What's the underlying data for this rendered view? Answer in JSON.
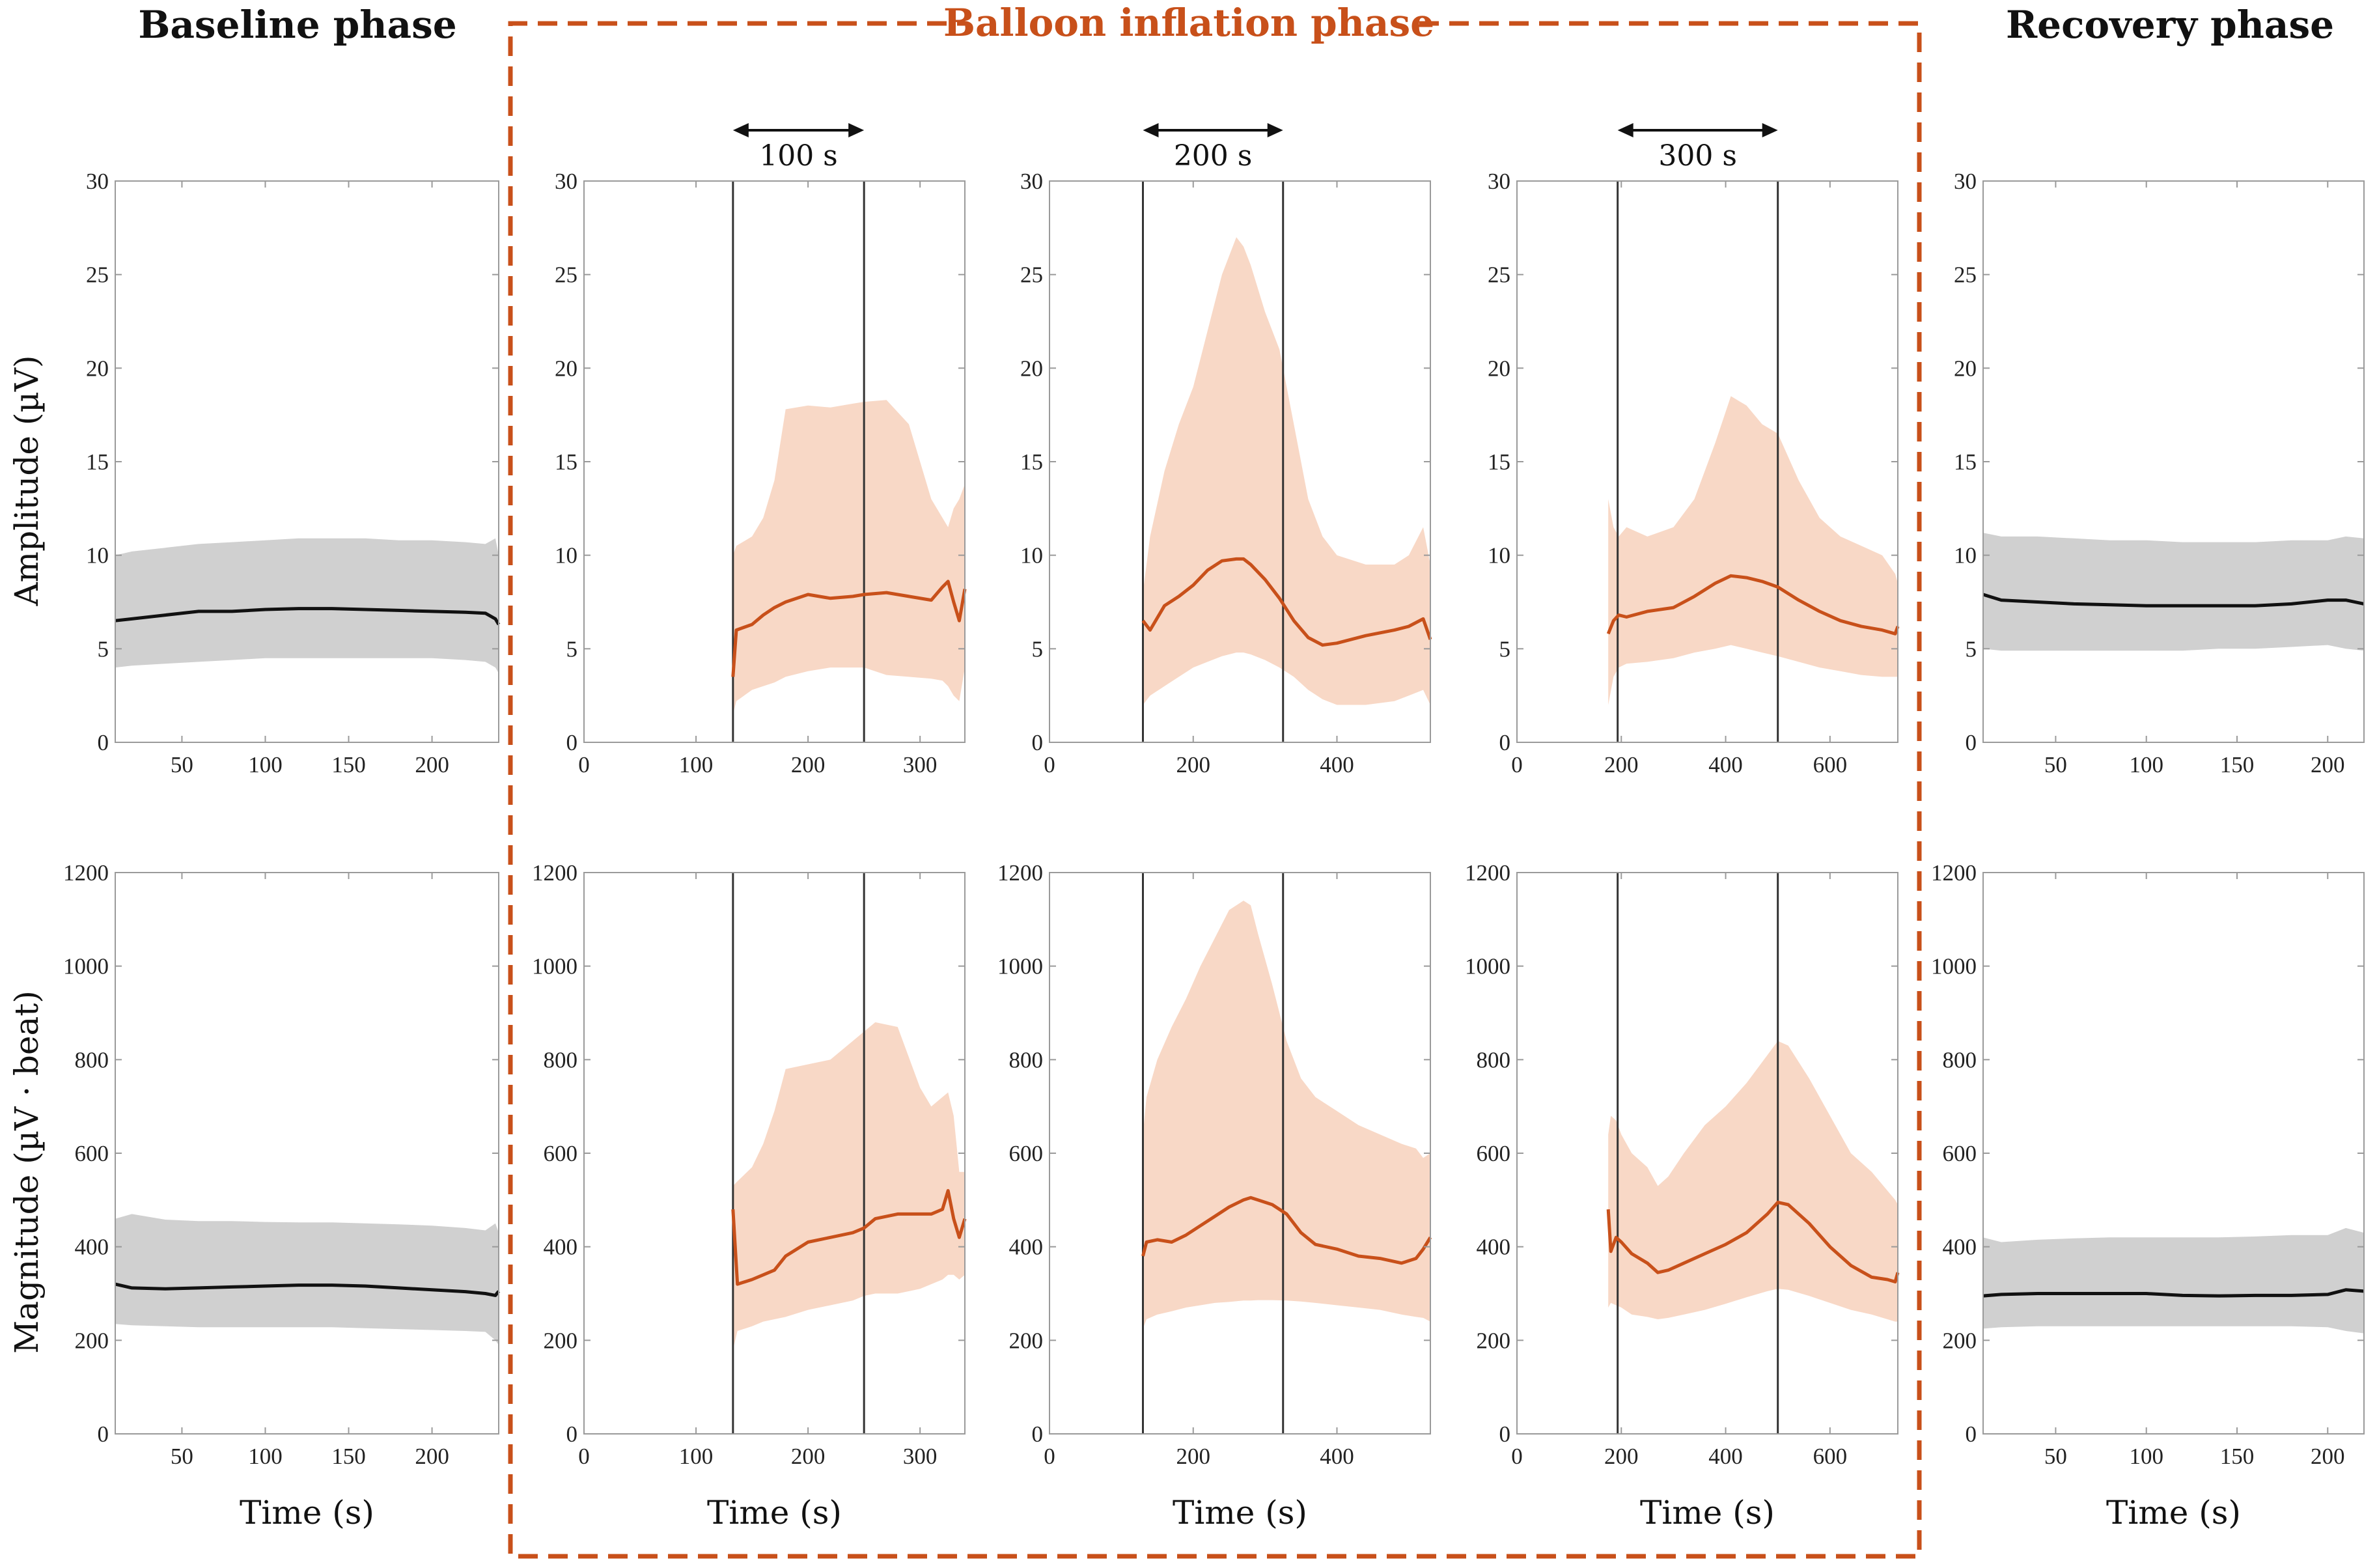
{
  "titles": {
    "baseline": "Baseline phase",
    "inflation": "Balloon inflation phase",
    "recovery": "Recovery phase"
  },
  "colors": {
    "inflation": "#c8501a",
    "inflation_band": "#f8d8c6",
    "baseline_band": "#d0d0d0",
    "line": "#111111",
    "axis": "#9a9a9a",
    "marker": "#333333"
  },
  "chart_data": [
    {
      "type": "area",
      "phase": "baseline",
      "row": "amplitude",
      "xlim": [
        10,
        240
      ],
      "ylim": [
        0,
        30
      ],
      "xticks": [
        "50",
        "100",
        "150",
        "200"
      ],
      "xtick_values": [
        50,
        100,
        150,
        200
      ],
      "yticks": [
        "0",
        "5",
        "10",
        "15",
        "20",
        "25",
        "30"
      ],
      "ytick_values": [
        0,
        5,
        10,
        15,
        20,
        25,
        30
      ],
      "ylabel": "Amplitude (µV)",
      "xlabel": "",
      "x": [
        10,
        20,
        40,
        60,
        80,
        100,
        120,
        140,
        160,
        180,
        200,
        220,
        232,
        238,
        240
      ],
      "mean": [
        6.5,
        6.6,
        6.8,
        7.0,
        7.0,
        7.1,
        7.15,
        7.15,
        7.1,
        7.05,
        7.0,
        6.95,
        6.9,
        6.6,
        6.3
      ],
      "upper": [
        10.0,
        10.2,
        10.4,
        10.6,
        10.7,
        10.8,
        10.9,
        10.9,
        10.9,
        10.8,
        10.8,
        10.7,
        10.6,
        10.9,
        10.0
      ],
      "lower": [
        4.0,
        4.1,
        4.2,
        4.3,
        4.4,
        4.5,
        4.5,
        4.5,
        4.5,
        4.5,
        4.5,
        4.4,
        4.3,
        4.0,
        3.7
      ]
    },
    {
      "type": "area",
      "phase": "inflation-100",
      "row": "amplitude",
      "xlim": [
        0,
        340
      ],
      "ylim": [
        0,
        30
      ],
      "xticks": [
        "0",
        "100",
        "200",
        "300"
      ],
      "xtick_values": [
        0,
        100,
        200,
        300
      ],
      "yticks": [
        "0",
        "5",
        "10",
        "15",
        "20",
        "25",
        "30"
      ],
      "ytick_values": [
        0,
        5,
        10,
        15,
        20,
        25,
        30
      ],
      "markers": [
        133,
        250
      ],
      "duration_label": "100 s",
      "x": [
        133,
        136,
        150,
        160,
        170,
        180,
        200,
        220,
        240,
        250,
        270,
        290,
        310,
        320,
        325,
        330,
        335,
        340
      ],
      "mean": [
        3.5,
        6.0,
        6.3,
        6.8,
        7.2,
        7.5,
        7.9,
        7.7,
        7.8,
        7.9,
        8.0,
        7.8,
        7.6,
        8.3,
        8.6,
        7.5,
        6.5,
        8.2
      ],
      "upper": [
        10.0,
        10.5,
        11.0,
        12.0,
        14.0,
        17.8,
        18.0,
        17.9,
        18.1,
        18.2,
        18.3,
        17.0,
        13.0,
        12.0,
        11.5,
        12.5,
        13.0,
        13.8
      ],
      "lower": [
        1.5,
        2.2,
        2.8,
        3.0,
        3.2,
        3.5,
        3.8,
        4.0,
        4.0,
        4.0,
        3.6,
        3.5,
        3.4,
        3.3,
        3.0,
        2.5,
        2.2,
        4.0
      ]
    },
    {
      "type": "area",
      "phase": "inflation-200",
      "row": "amplitude",
      "xlim": [
        0,
        530
      ],
      "ylim": [
        0,
        30
      ],
      "xticks": [
        "0",
        "200",
        "400"
      ],
      "xtick_values": [
        0,
        200,
        400
      ],
      "yticks": [
        "0",
        "5",
        "10",
        "15",
        "20",
        "25",
        "30"
      ],
      "ytick_values": [
        0,
        5,
        10,
        15,
        20,
        25,
        30
      ],
      "markers": [
        130,
        325
      ],
      "duration_label": "200 s",
      "x": [
        130,
        140,
        160,
        180,
        200,
        220,
        240,
        260,
        270,
        280,
        300,
        320,
        340,
        360,
        380,
        400,
        440,
        480,
        500,
        520,
        530
      ],
      "mean": [
        6.5,
        6.0,
        7.3,
        7.8,
        8.4,
        9.2,
        9.7,
        9.8,
        9.8,
        9.5,
        8.7,
        7.7,
        6.5,
        5.6,
        5.2,
        5.3,
        5.7,
        6.0,
        6.2,
        6.6,
        5.5
      ],
      "upper": [
        8.0,
        11.0,
        14.5,
        17.0,
        19.0,
        22.0,
        25.0,
        27.0,
        26.5,
        25.5,
        23.0,
        21.0,
        17.0,
        13.0,
        11.0,
        10.0,
        9.5,
        9.5,
        10.0,
        11.5,
        9.5
      ],
      "lower": [
        2.0,
        2.5,
        3.0,
        3.5,
        4.0,
        4.3,
        4.6,
        4.8,
        4.8,
        4.7,
        4.4,
        4.0,
        3.5,
        2.8,
        2.3,
        2.0,
        2.0,
        2.2,
        2.5,
        2.8,
        2.0
      ]
    },
    {
      "type": "area",
      "phase": "inflation-300",
      "row": "amplitude",
      "xlim": [
        0,
        730
      ],
      "ylim": [
        0,
        30
      ],
      "xticks": [
        "0",
        "200",
        "400",
        "600"
      ],
      "xtick_values": [
        0,
        200,
        400,
        600
      ],
      "yticks": [
        "0",
        "5",
        "10",
        "15",
        "20",
        "25",
        "30"
      ],
      "ytick_values": [
        0,
        5,
        10,
        15,
        20,
        25,
        30
      ],
      "markers": [
        193,
        500
      ],
      "duration_label": "300 s",
      "x": [
        175,
        185,
        195,
        210,
        250,
        300,
        340,
        380,
        410,
        440,
        470,
        500,
        540,
        580,
        620,
        660,
        700,
        725,
        730
      ],
      "mean": [
        5.8,
        6.5,
        6.8,
        6.7,
        7.0,
        7.2,
        7.8,
        8.5,
        8.9,
        8.8,
        8.6,
        8.3,
        7.6,
        7.0,
        6.5,
        6.2,
        6.0,
        5.8,
        6.2
      ],
      "upper": [
        13.0,
        11.5,
        11.0,
        11.5,
        11.0,
        11.5,
        13.0,
        16.0,
        18.5,
        18.0,
        17.0,
        16.5,
        14.0,
        12.0,
        11.0,
        10.5,
        10.0,
        9.0,
        8.5
      ],
      "lower": [
        2.0,
        3.5,
        4.0,
        4.2,
        4.3,
        4.5,
        4.8,
        5.0,
        5.2,
        5.0,
        4.8,
        4.6,
        4.3,
        4.0,
        3.8,
        3.6,
        3.5,
        3.5,
        3.5
      ]
    },
    {
      "type": "area",
      "phase": "recovery",
      "row": "amplitude",
      "xlim": [
        10,
        220
      ],
      "ylim": [
        0,
        30
      ],
      "xticks": [
        "50",
        "100",
        "150",
        "200"
      ],
      "xtick_values": [
        50,
        100,
        150,
        200
      ],
      "yticks": [
        "0",
        "5",
        "10",
        "15",
        "20",
        "25",
        "30"
      ],
      "ytick_values": [
        0,
        5,
        10,
        15,
        20,
        25,
        30
      ],
      "x": [
        10,
        20,
        40,
        60,
        80,
        100,
        120,
        140,
        160,
        180,
        200,
        210,
        220
      ],
      "mean": [
        7.9,
        7.6,
        7.5,
        7.4,
        7.35,
        7.3,
        7.3,
        7.3,
        7.3,
        7.4,
        7.6,
        7.6,
        7.4
      ],
      "upper": [
        11.2,
        11.0,
        11.0,
        10.9,
        10.8,
        10.8,
        10.7,
        10.7,
        10.7,
        10.8,
        10.8,
        11.0,
        10.9
      ],
      "lower": [
        5.0,
        4.9,
        4.9,
        4.9,
        4.9,
        4.9,
        4.9,
        5.0,
        5.0,
        5.1,
        5.2,
        5.0,
        4.9
      ]
    },
    {
      "type": "area",
      "phase": "baseline",
      "row": "magnitude",
      "xlim": [
        10,
        240
      ],
      "ylim": [
        0,
        1200
      ],
      "xticks": [
        "50",
        "100",
        "150",
        "200"
      ],
      "xtick_values": [
        50,
        100,
        150,
        200
      ],
      "yticks": [
        "0",
        "200",
        "400",
        "600",
        "800",
        "1000",
        "1200"
      ],
      "ytick_values": [
        0,
        200,
        400,
        600,
        800,
        1000,
        1200
      ],
      "ylabel": "Magnitude (µV · beat)",
      "xlabel": "Time (s)",
      "x": [
        10,
        20,
        40,
        60,
        80,
        100,
        120,
        140,
        160,
        180,
        200,
        220,
        232,
        238,
        240
      ],
      "mean": [
        320,
        312,
        310,
        312,
        314,
        316,
        318,
        318,
        316,
        312,
        308,
        304,
        300,
        296,
        305
      ],
      "upper": [
        460,
        470,
        458,
        455,
        455,
        453,
        452,
        452,
        450,
        448,
        445,
        440,
        435,
        450,
        430
      ],
      "lower": [
        235,
        232,
        230,
        228,
        228,
        228,
        228,
        228,
        226,
        224,
        222,
        220,
        218,
        200,
        190
      ]
    },
    {
      "type": "area",
      "phase": "inflation-100",
      "row": "magnitude",
      "xlim": [
        0,
        340
      ],
      "ylim": [
        0,
        1200
      ],
      "xticks": [
        "0",
        "100",
        "200",
        "300"
      ],
      "xtick_values": [
        0,
        100,
        200,
        300
      ],
      "yticks": [
        "0",
        "200",
        "400",
        "600",
        "800",
        "1000",
        "1200"
      ],
      "ytick_values": [
        0,
        200,
        400,
        600,
        800,
        1000,
        1200
      ],
      "markers": [
        133,
        250
      ],
      "xlabel": "Time (s)",
      "x": [
        133,
        137,
        150,
        160,
        170,
        180,
        200,
        220,
        240,
        250,
        260,
        280,
        300,
        310,
        320,
        325,
        330,
        335,
        340
      ],
      "mean": [
        480,
        320,
        330,
        340,
        350,
        380,
        410,
        420,
        430,
        440,
        460,
        470,
        470,
        470,
        480,
        520,
        460,
        420,
        460
      ],
      "upper": [
        530,
        540,
        570,
        620,
        690,
        780,
        790,
        800,
        840,
        860,
        880,
        870,
        740,
        700,
        720,
        730,
        680,
        560,
        560
      ],
      "lower": [
        180,
        220,
        230,
        240,
        245,
        250,
        265,
        275,
        285,
        295,
        300,
        300,
        310,
        320,
        330,
        340,
        340,
        330,
        340
      ]
    },
    {
      "type": "area",
      "phase": "inflation-200",
      "row": "magnitude",
      "xlim": [
        0,
        530
      ],
      "ylim": [
        0,
        1200
      ],
      "xticks": [
        "0",
        "200",
        "400"
      ],
      "xtick_values": [
        0,
        200,
        400
      ],
      "yticks": [
        "0",
        "200",
        "400",
        "600",
        "800",
        "1000",
        "1200"
      ],
      "ytick_values": [
        0,
        200,
        400,
        600,
        800,
        1000,
        1200
      ],
      "markers": [
        130,
        325
      ],
      "xlabel": "Time (s)",
      "x": [
        130,
        135,
        150,
        170,
        190,
        210,
        230,
        250,
        270,
        280,
        290,
        310,
        330,
        350,
        370,
        400,
        430,
        460,
        490,
        510,
        520,
        530
      ],
      "mean": [
        380,
        410,
        415,
        410,
        425,
        445,
        465,
        485,
        500,
        505,
        500,
        490,
        470,
        430,
        405,
        395,
        380,
        375,
        365,
        375,
        395,
        420
      ],
      "upper": [
        640,
        720,
        800,
        870,
        930,
        1000,
        1060,
        1120,
        1140,
        1130,
        1070,
        960,
        840,
        760,
        720,
        690,
        660,
        640,
        620,
        610,
        590,
        600
      ],
      "lower": [
        225,
        245,
        255,
        262,
        270,
        275,
        280,
        282,
        285,
        285,
        286,
        286,
        285,
        283,
        280,
        275,
        270,
        265,
        255,
        250,
        248,
        240
      ]
    },
    {
      "type": "area",
      "phase": "inflation-300",
      "row": "magnitude",
      "xlim": [
        0,
        730
      ],
      "ylim": [
        0,
        1200
      ],
      "xticks": [
        "0",
        "200",
        "400",
        "600"
      ],
      "xtick_values": [
        0,
        200,
        400,
        600
      ],
      "yticks": [
        "0",
        "200",
        "400",
        "600",
        "800",
        "1000",
        "1200"
      ],
      "ytick_values": [
        0,
        200,
        400,
        600,
        800,
        1000,
        1200
      ],
      "markers": [
        193,
        500
      ],
      "xlabel": "Time (s)",
      "x": [
        175,
        180,
        190,
        200,
        220,
        250,
        270,
        290,
        320,
        360,
        400,
        440,
        480,
        500,
        520,
        560,
        600,
        640,
        680,
        710,
        725,
        730
      ],
      "mean": [
        480,
        390,
        420,
        410,
        385,
        365,
        345,
        350,
        365,
        385,
        405,
        430,
        470,
        495,
        490,
        450,
        400,
        360,
        335,
        330,
        325,
        345
      ],
      "upper": [
        640,
        680,
        670,
        640,
        600,
        570,
        530,
        550,
        600,
        660,
        700,
        750,
        810,
        840,
        830,
        760,
        680,
        600,
        560,
        520,
        500,
        490
      ],
      "lower": [
        270,
        280,
        275,
        270,
        255,
        250,
        245,
        248,
        255,
        265,
        278,
        292,
        305,
        310,
        308,
        295,
        280,
        265,
        255,
        245,
        240,
        240
      ]
    },
    {
      "type": "area",
      "phase": "recovery",
      "row": "magnitude",
      "xlim": [
        10,
        220
      ],
      "ylim": [
        0,
        1200
      ],
      "xticks": [
        "50",
        "100",
        "150",
        "200"
      ],
      "xtick_values": [
        50,
        100,
        150,
        200
      ],
      "yticks": [
        "0",
        "200",
        "400",
        "600",
        "800",
        "1000",
        "1200"
      ],
      "ytick_values": [
        0,
        200,
        400,
        600,
        800,
        1000,
        1200
      ],
      "xlabel": "Time (s)",
      "x": [
        10,
        20,
        40,
        60,
        80,
        100,
        120,
        140,
        160,
        180,
        200,
        210,
        220
      ],
      "mean": [
        295,
        298,
        300,
        300,
        300,
        300,
        296,
        295,
        296,
        296,
        298,
        308,
        305
      ],
      "upper": [
        420,
        410,
        415,
        418,
        420,
        420,
        420,
        420,
        422,
        425,
        425,
        440,
        430
      ],
      "lower": [
        225,
        228,
        230,
        230,
        230,
        230,
        230,
        230,
        230,
        230,
        228,
        220,
        215
      ]
    }
  ]
}
